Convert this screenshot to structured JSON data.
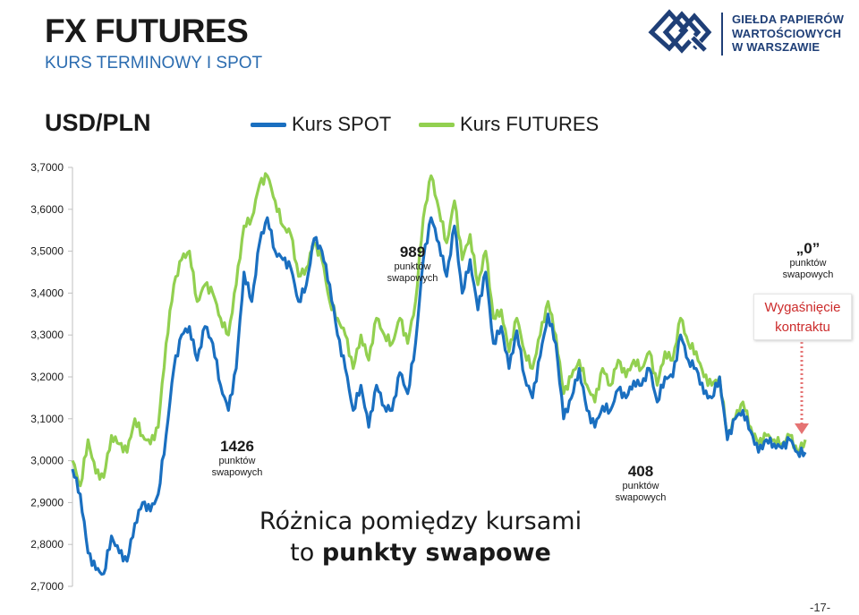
{
  "header": {
    "title": "FX FUTURES",
    "subtitle": "KURS TERMINOWY I SPOT"
  },
  "logo": {
    "line1": "GIEŁDA PAPIERÓW",
    "line2": "WARTOŚCIOWYCH",
    "line3": "W WARSZAWIE",
    "color": "#1f3f77"
  },
  "chart_data": {
    "type": "line",
    "title": "USD/PLN",
    "ylim": [
      2.7,
      3.7
    ],
    "y_ticks": [
      "3,7000",
      "3,6000",
      "3,5000",
      "3,4000",
      "3,3000",
      "3,2000",
      "3,1000",
      "3,0000",
      "2,9000",
      "2,8000",
      "2,7000"
    ],
    "y_tick_values": [
      3.7,
      3.6,
      3.5,
      3.4,
      3.3,
      3.2,
      3.1,
      3.0,
      2.9,
      2.8,
      2.7
    ],
    "grid": false,
    "legend_position": "top",
    "series": [
      {
        "name": "Kurs SPOT",
        "color": "#1a6fc0",
        "values": [
          2.98,
          2.92,
          2.78,
          2.74,
          2.73,
          2.82,
          2.78,
          2.76,
          2.85,
          2.9,
          2.88,
          2.92,
          3.06,
          3.22,
          3.3,
          3.32,
          3.24,
          3.32,
          3.28,
          3.18,
          3.12,
          3.22,
          3.45,
          3.38,
          3.52,
          3.58,
          3.5,
          3.48,
          3.46,
          3.38,
          3.42,
          3.53,
          3.5,
          3.42,
          3.3,
          3.22,
          3.12,
          3.18,
          3.08,
          3.18,
          3.13,
          3.12,
          3.21,
          3.16,
          3.28,
          3.48,
          3.58,
          3.52,
          3.44,
          3.56,
          3.4,
          3.48,
          3.36,
          3.45,
          3.28,
          3.32,
          3.22,
          3.31,
          3.2,
          3.15,
          3.25,
          3.35,
          3.28,
          3.1,
          3.15,
          3.22,
          3.12,
          3.08,
          3.13,
          3.12,
          3.17,
          3.15,
          3.19,
          3.18,
          3.22,
          3.14,
          3.2,
          3.2,
          3.3,
          3.24,
          3.22,
          3.16,
          3.15,
          3.2,
          3.05,
          3.1,
          3.12,
          3.07,
          3.02,
          3.05,
          3.04,
          3.03,
          3.05,
          3.02,
          3.02
        ]
      },
      {
        "name": "Kurs FUTURES",
        "color": "#92d050",
        "values": [
          3.0,
          2.94,
          3.05,
          2.97,
          2.96,
          3.06,
          3.04,
          3.02,
          3.1,
          3.06,
          3.04,
          3.08,
          3.28,
          3.42,
          3.48,
          3.5,
          3.38,
          3.42,
          3.4,
          3.34,
          3.3,
          3.42,
          3.56,
          3.58,
          3.66,
          3.68,
          3.62,
          3.56,
          3.54,
          3.44,
          3.46,
          3.52,
          3.48,
          3.38,
          3.34,
          3.3,
          3.22,
          3.3,
          3.24,
          3.34,
          3.3,
          3.28,
          3.34,
          3.28,
          3.38,
          3.58,
          3.68,
          3.6,
          3.52,
          3.62,
          3.48,
          3.54,
          3.42,
          3.5,
          3.34,
          3.36,
          3.26,
          3.34,
          3.26,
          3.22,
          3.3,
          3.38,
          3.3,
          3.16,
          3.2,
          3.24,
          3.18,
          3.14,
          3.22,
          3.18,
          3.24,
          3.2,
          3.24,
          3.22,
          3.26,
          3.18,
          3.26,
          3.24,
          3.34,
          3.28,
          3.26,
          3.2,
          3.18,
          3.2,
          3.06,
          3.1,
          3.14,
          3.08,
          3.04,
          3.06,
          3.05,
          3.04,
          3.06,
          3.02,
          3.05
        ]
      }
    ]
  },
  "annotations": [
    {
      "value": "989",
      "line1": "punktów",
      "line2": "swapowych"
    },
    {
      "value": "0",
      "line1": "punktów",
      "line2": "swapowych"
    },
    {
      "value": "1426",
      "line1": "punktów",
      "line2": "swapowych"
    },
    {
      "value": "408",
      "line1": "punktów",
      "line2": "swapowych"
    }
  ],
  "expiry_box": {
    "line1": "Wygaśnięcie",
    "line2": "kontraktu"
  },
  "note": {
    "line1": "Różnica pomiędzy kursami",
    "line2_prefix": "to ",
    "line2_bold": "punkty swapowe"
  },
  "page_number": "-17-"
}
